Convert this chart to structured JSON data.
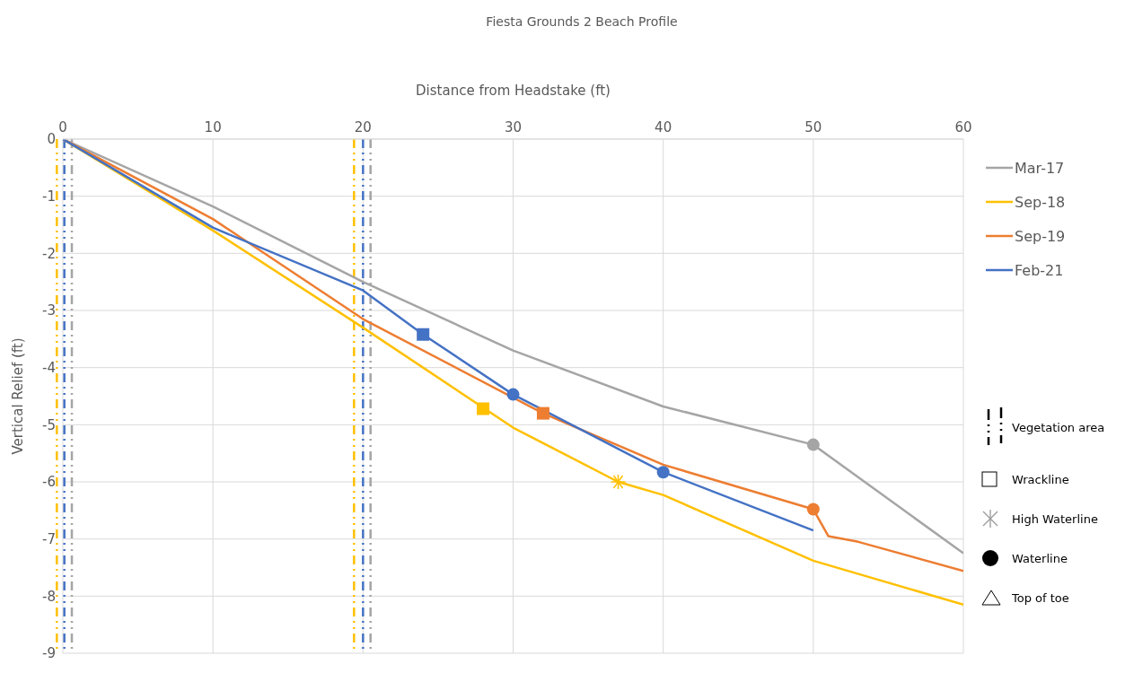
{
  "chart_data": {
    "type": "line",
    "title": "Fiesta Grounds 2 Beach Profile",
    "xlabel": "Distance from Headstake (ft)",
    "ylabel": "Vertical Relief (ft)",
    "xlim": [
      0,
      60
    ],
    "xticks": [
      0,
      10,
      20,
      30,
      40,
      50,
      60
    ],
    "ylim": [
      -9,
      0
    ],
    "yticks": [
      -9,
      -8,
      -7,
      -6,
      -5,
      -4,
      -3,
      -2,
      -1,
      0
    ],
    "grid": true,
    "legend": "right",
    "marker": "none",
    "line_style": "solid",
    "series": [
      {
        "name": "Mar-17",
        "color": "#a5a5a5",
        "x": [
          0,
          10,
          20,
          30,
          40,
          50,
          60
        ],
        "values": [
          0,
          -1.18,
          -2.5,
          -3.7,
          -4.68,
          -5.35,
          -7.25
        ]
      },
      {
        "name": "Sep-18",
        "color": "#ffc000",
        "x": [
          0,
          10,
          20,
          30,
          37,
          40,
          50,
          60
        ],
        "values": [
          0,
          -1.6,
          -3.3,
          -5.05,
          -6,
          -6.23,
          -7.38,
          -8.15
        ]
      },
      {
        "name": "Sep-19",
        "color": "#ed7d31",
        "x": [
          0,
          10,
          20,
          32,
          40,
          50,
          51,
          53,
          60
        ],
        "values": [
          0,
          -1.4,
          -3.15,
          -4.8,
          -5.7,
          -6.48,
          -6.95,
          -7.05,
          -7.56
        ]
      },
      {
        "name": "Feb-21",
        "color": "#4472c4",
        "x": [
          0,
          10,
          20,
          24,
          30,
          40,
          50
        ],
        "values": [
          0,
          -1.55,
          -2.65,
          -3.42,
          -4.47,
          -5.83,
          -6.85
        ]
      },
      {
        "type": "scatter",
        "marker": "square",
        "color": "#4472c4",
        "x": [
          24
        ],
        "values": [
          -3.42
        ]
      },
      {
        "type": "scatter",
        "marker": "square",
        "color": "#ffc000",
        "x": [
          28
        ],
        "values": [
          -4.72
        ]
      },
      {
        "type": "scatter",
        "marker": "square",
        "color": "#ed7d31",
        "x": [
          32
        ],
        "values": [
          -4.8
        ]
      },
      {
        "type": "scatter",
        "marker": "cross",
        "color": "#ffc000",
        "x": [
          37
        ],
        "values": [
          -6
        ]
      },
      {
        "type": "scatter",
        "marker": "circle",
        "color": "#4472c4",
        "x": [
          30,
          40
        ],
        "values": [
          -4.47,
          -5.83
        ]
      },
      {
        "type": "scatter",
        "marker": "circle",
        "color": "#a5a5a5",
        "x": [
          50
        ],
        "values": [
          -5.35
        ]
      },
      {
        "type": "scatter",
        "marker": "circle",
        "color": "#ed7d31",
        "x": [
          50
        ],
        "values": [
          -6.48
        ]
      }
    ],
    "ref_lines": [
      {
        "axis": "x",
        "value": -0.4,
        "color": "#ffc000",
        "line_style": "dashed"
      },
      {
        "axis": "x",
        "value": 0.1,
        "color": "#4472c4",
        "line_style": "dashed"
      },
      {
        "axis": "x",
        "value": 0.6,
        "color": "#a5a5a5",
        "line_style": "dashed"
      },
      {
        "axis": "x",
        "value": 19.4,
        "color": "#ffc000",
        "line_style": "dashed"
      },
      {
        "axis": "x",
        "value": 20,
        "color": "#4472c4",
        "line_style": "dashed"
      },
      {
        "axis": "x",
        "value": 20.5,
        "color": "#a5a5a5",
        "line_style": "dashed"
      }
    ],
    "annotations": [
      "Vegetation area",
      "Wrackline",
      "High Waterline",
      "Waterline",
      "Top of toe"
    ]
  }
}
